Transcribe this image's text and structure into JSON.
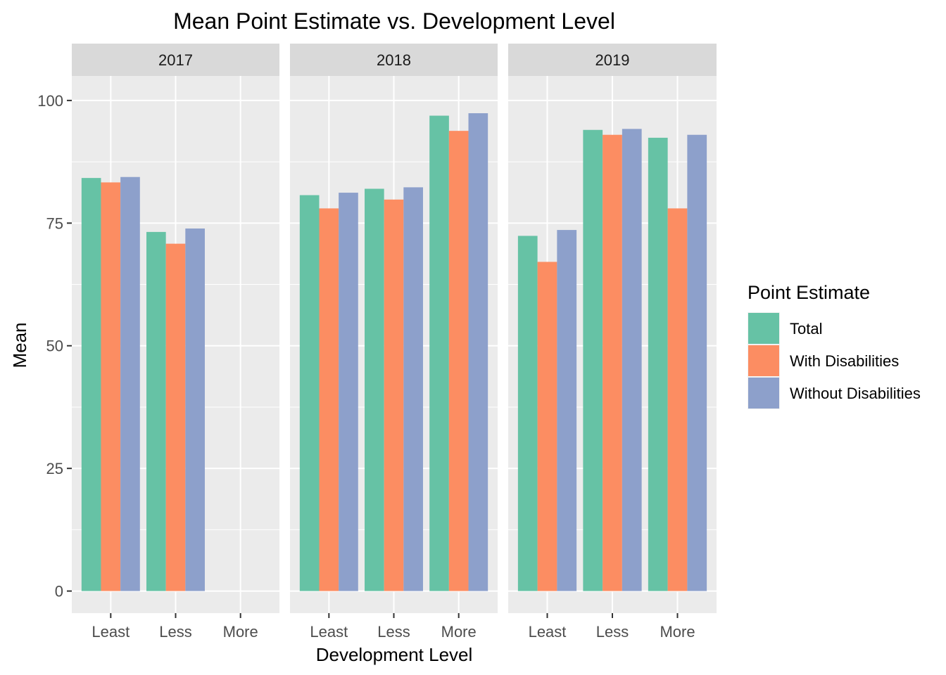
{
  "chart_data": {
    "type": "bar",
    "title": "Mean Point Estimate vs. Development Level",
    "xlabel": "Development Level",
    "ylabel": "Mean",
    "ylim": [
      -4.5,
      105
    ],
    "yticks": [
      0,
      25,
      50,
      75,
      100
    ],
    "categories": [
      "Least",
      "Less",
      "More"
    ],
    "legend": {
      "title": "Point Estimate",
      "position": "right",
      "entries": [
        "Total",
        "With Disabilities",
        "Without Disabilities"
      ]
    },
    "series_colors": [
      "#66c2a5",
      "#fc8d62",
      "#8da0cb"
    ],
    "panel_background": "#ebebeb",
    "strip_background": "#d9d9d9",
    "grid": true,
    "facets": [
      {
        "label": "2017",
        "series": [
          {
            "name": "Total",
            "values": [
              84.2,
              73.2,
              null
            ]
          },
          {
            "name": "With Disabilities",
            "values": [
              83.3,
              70.8,
              null
            ]
          },
          {
            "name": "Without Disabilities",
            "values": [
              84.4,
              73.9,
              null
            ]
          }
        ]
      },
      {
        "label": "2018",
        "series": [
          {
            "name": "Total",
            "values": [
              80.7,
              82.0,
              96.9
            ]
          },
          {
            "name": "With Disabilities",
            "values": [
              78.0,
              79.8,
              93.8
            ]
          },
          {
            "name": "Without Disabilities",
            "values": [
              81.2,
              82.3,
              97.4
            ]
          }
        ]
      },
      {
        "label": "2019",
        "series": [
          {
            "name": "Total",
            "values": [
              72.4,
              94.0,
              92.4
            ]
          },
          {
            "name": "With Disabilities",
            "values": [
              67.1,
              93.0,
              78.0
            ]
          },
          {
            "name": "Without Disabilities",
            "values": [
              73.6,
              94.2,
              93.0
            ]
          }
        ]
      }
    ]
  }
}
